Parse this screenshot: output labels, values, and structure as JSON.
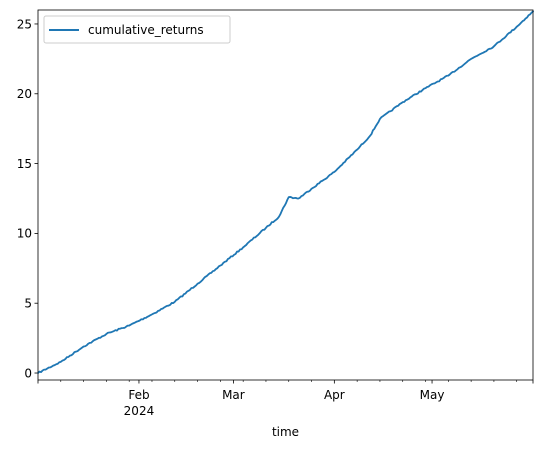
{
  "chart_data": {
    "type": "line",
    "title": "",
    "xlabel": "time",
    "ylabel": "",
    "x_range": [
      "2024-01-01",
      "2024-06-01"
    ],
    "ylim": [
      -0.5,
      26
    ],
    "yticks": [
      0,
      5,
      10,
      15,
      20,
      25
    ],
    "ytick_labels": [
      "0",
      "5",
      "10",
      "15",
      "20",
      "25"
    ],
    "xticks_major": [
      {
        "date": "2024-02-01",
        "label": "Feb",
        "sublabel": "2024"
      },
      {
        "date": "2024-03-01",
        "label": "Mar",
        "sublabel": ""
      },
      {
        "date": "2024-04-01",
        "label": "Apr",
        "sublabel": ""
      },
      {
        "date": "2024-05-01",
        "label": "May",
        "sublabel": ""
      }
    ],
    "xticks_minor": [
      "2024-01-08",
      "2024-01-15",
      "2024-01-22",
      "2024-01-29",
      "2024-02-05",
      "2024-02-12",
      "2024-02-19",
      "2024-02-26",
      "2024-03-04",
      "2024-03-11",
      "2024-03-18",
      "2024-03-25",
      "2024-04-08",
      "2024-04-15",
      "2024-04-22",
      "2024-04-29",
      "2024-05-06",
      "2024-05-13",
      "2024-05-20",
      "2024-05-27"
    ],
    "grid": false,
    "legend_position": "upper left",
    "series": [
      {
        "name": "cumulative_returns",
        "color": "#1f77b4",
        "x": [
          "2024-01-01",
          "2024-01-08",
          "2024-01-15",
          "2024-01-22",
          "2024-01-29",
          "2024-02-05",
          "2024-02-12",
          "2024-02-19",
          "2024-02-26",
          "2024-03-04",
          "2024-03-11",
          "2024-03-15",
          "2024-03-18",
          "2024-03-21",
          "2024-03-25",
          "2024-04-01",
          "2024-04-08",
          "2024-04-12",
          "2024-04-15",
          "2024-04-22",
          "2024-04-29",
          "2024-05-06",
          "2024-05-13",
          "2024-05-20",
          "2024-05-27",
          "2024-06-01"
        ],
        "y": [
          0.0,
          0.8,
          1.9,
          2.8,
          3.4,
          4.2,
          5.1,
          6.4,
          7.7,
          9.0,
          10.4,
          11.2,
          12.6,
          12.5,
          13.2,
          14.4,
          16.0,
          17.0,
          18.2,
          19.4,
          20.4,
          21.3,
          22.5,
          23.4,
          24.8,
          25.9
        ]
      }
    ]
  }
}
